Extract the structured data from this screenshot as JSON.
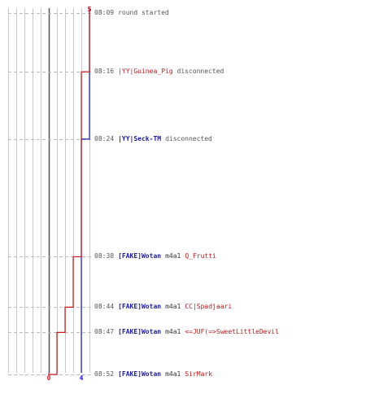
{
  "chart_data": {
    "type": "line",
    "title": "",
    "xlabel": "",
    "ylabel": "",
    "xlim": [
      -5,
      5
    ],
    "series": [
      {
        "team": "blue",
        "color": "#1a1acc",
        "start": 5,
        "end": 4,
        "steps": [
          {
            "time": "08:09",
            "value": 5
          },
          {
            "time": "08:24",
            "value": 4
          }
        ]
      },
      {
        "team": "red",
        "color": "#cc1a1a",
        "start": 5,
        "end": 0,
        "steps": [
          {
            "time": "08:09",
            "value": 5
          },
          {
            "time": "08:16",
            "value": 4
          },
          {
            "time": "08:38",
            "value": 3
          },
          {
            "time": "08:44",
            "value": 2
          },
          {
            "time": "08:47",
            "value": 1
          },
          {
            "time": "08:52",
            "value": 0
          }
        ]
      }
    ],
    "top_labels": {
      "blue": "5",
      "red": "5"
    },
    "bottom_labels": {
      "blue": "4",
      "red": "0"
    }
  },
  "events": [
    {
      "time": "08:09",
      "parts": [
        {
          "text": "round started",
          "cls": "msg"
        }
      ]
    },
    {
      "time": "08:16",
      "parts": [
        {
          "text": "|YY|Guinea_Pig",
          "cls": "player-red"
        },
        {
          "text": "disconnected",
          "cls": "msg"
        }
      ]
    },
    {
      "time": "08:24",
      "parts": [
        {
          "text": "|YY|Seck-TM",
          "cls": "player-blue"
        },
        {
          "text": "disconnected",
          "cls": "msg"
        }
      ]
    },
    {
      "time": "08:38",
      "parts": [
        {
          "text": "[FAKE]Wotan",
          "cls": "player-blue"
        },
        {
          "text": "m4a1",
          "cls": "weapon"
        },
        {
          "text": "Q_Frutti",
          "cls": "player-red"
        }
      ]
    },
    {
      "time": "08:44",
      "parts": [
        {
          "text": "[FAKE]Wotan",
          "cls": "player-blue"
        },
        {
          "text": "m4a1",
          "cls": "weapon"
        },
        {
          "text": "CC|Spadjaari",
          "cls": "player-red"
        }
      ]
    },
    {
      "time": "08:47",
      "parts": [
        {
          "text": "[FAKE]Wotan",
          "cls": "player-blue"
        },
        {
          "text": "m4a1",
          "cls": "weapon"
        },
        {
          "text": "<=JUF(=>SweetLittleDevil",
          "cls": "player-red"
        }
      ]
    },
    {
      "time": "08:52",
      "parts": [
        {
          "text": "[FAKE]Wotan",
          "cls": "player-blue"
        },
        {
          "text": "m4a1",
          "cls": "weapon"
        },
        {
          "text": "SirMark",
          "cls": "player-red"
        }
      ]
    }
  ]
}
